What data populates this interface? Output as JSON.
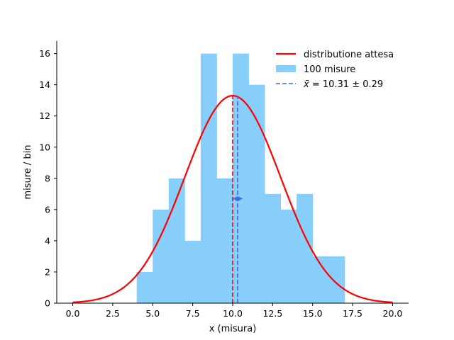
{
  "chart_data": {
    "type": "bar",
    "xlabel": "x (misura)",
    "ylabel": "misure / bin",
    "xlim": [
      -1.0,
      21.0
    ],
    "ylim": [
      0,
      16.8
    ],
    "xticks": [
      0.0,
      2.5,
      5.0,
      7.5,
      10.0,
      12.5,
      15.0,
      17.5,
      20.0
    ],
    "xtick_labels": [
      "0.0",
      "2.5",
      "5.0",
      "7.5",
      "10.0",
      "12.5",
      "15.0",
      "17.5",
      "20.0"
    ],
    "yticks": [
      0,
      2,
      4,
      6,
      8,
      10,
      12,
      14,
      16
    ],
    "ytick_labels": [
      "0",
      "2",
      "4",
      "6",
      "8",
      "10",
      "12",
      "14",
      "16"
    ],
    "histogram": {
      "name": "100 misure",
      "color": "#87cefa",
      "bin_edges": [
        4,
        5,
        6,
        7,
        8,
        9,
        10,
        11,
        12,
        13,
        14,
        15,
        16,
        17
      ],
      "counts": [
        2,
        6,
        8,
        4,
        16,
        8,
        16,
        14,
        7,
        6,
        7,
        3,
        3
      ]
    },
    "expected_curve": {
      "name": "distributione attesa",
      "color": "#ff0000",
      "mean": 10.0,
      "sigma": 3.0,
      "peak": 13.3,
      "x_range": [
        0,
        20
      ]
    },
    "expected_mean_line": {
      "x": 10.0,
      "color": "#dd2222"
    },
    "sample_mean": {
      "name": "$\\bar{x} = 10.31 \\pm 0.29$",
      "display_prefix": "x̄ = ",
      "display_value": "10.31 ± 0.29",
      "value": 10.31,
      "error": 0.29,
      "marker_y": 6.7,
      "color": "#4169e1"
    },
    "legend_position": "top-right",
    "grid": false
  }
}
